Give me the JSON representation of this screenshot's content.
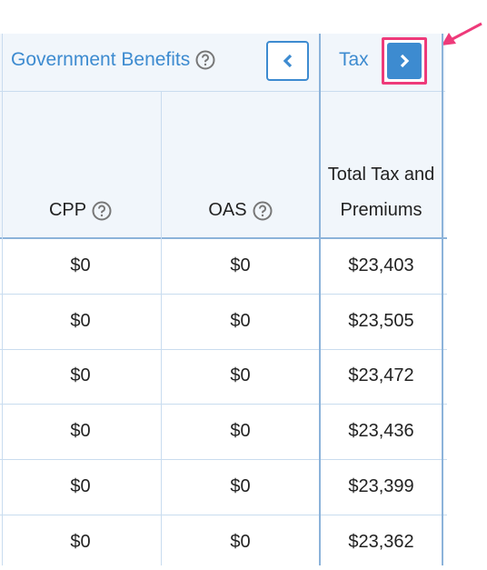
{
  "header": {
    "groups": [
      "Government Benefits",
      "Tax"
    ]
  },
  "columns": [
    "CPP",
    "OAS",
    "Total Tax and Premiums"
  ],
  "rows": [
    [
      "$0",
      "$0",
      "$23,403"
    ],
    [
      "$0",
      "$0",
      "$23,505"
    ],
    [
      "$0",
      "$0",
      "$23,472"
    ],
    [
      "$0",
      "$0",
      "$23,436"
    ],
    [
      "$0",
      "$0",
      "$23,399"
    ],
    [
      "$0",
      "$0",
      "$23,362"
    ]
  ]
}
